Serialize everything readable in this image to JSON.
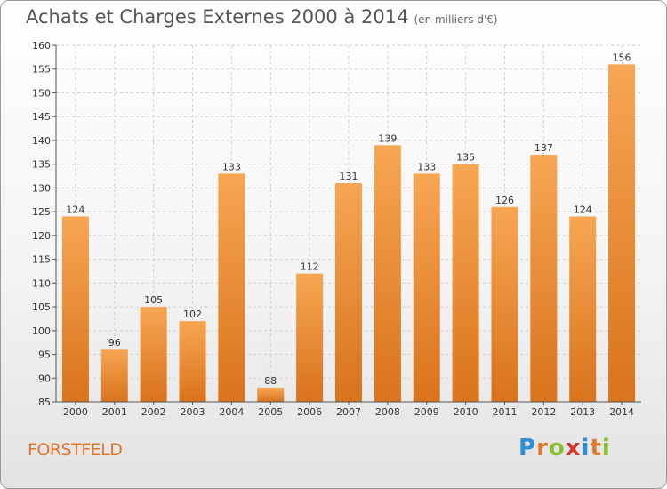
{
  "title": "Achats et Charges Externes 2000 à 2014",
  "subtitle": "(en milliers d'€)",
  "town": "FORSTFELD",
  "logo": "Proxiti",
  "colors": {
    "bar_top": "#f7a653",
    "bar_bottom": "#d9731c",
    "grid": "#cfcfcf",
    "accent": "#e0752d"
  },
  "chart_data": {
    "type": "bar",
    "categories": [
      "2000",
      "2001",
      "2002",
      "2003",
      "2004",
      "2005",
      "2006",
      "2007",
      "2008",
      "2009",
      "2010",
      "2011",
      "2012",
      "2013",
      "2014"
    ],
    "values": [
      124,
      96,
      105,
      102,
      133,
      88,
      112,
      131,
      139,
      133,
      135,
      126,
      137,
      124,
      156
    ],
    "ylim": [
      85,
      160
    ],
    "yticks": [
      85,
      90,
      95,
      100,
      105,
      110,
      115,
      120,
      125,
      130,
      135,
      140,
      145,
      150,
      155,
      160
    ],
    "grid": true
  }
}
